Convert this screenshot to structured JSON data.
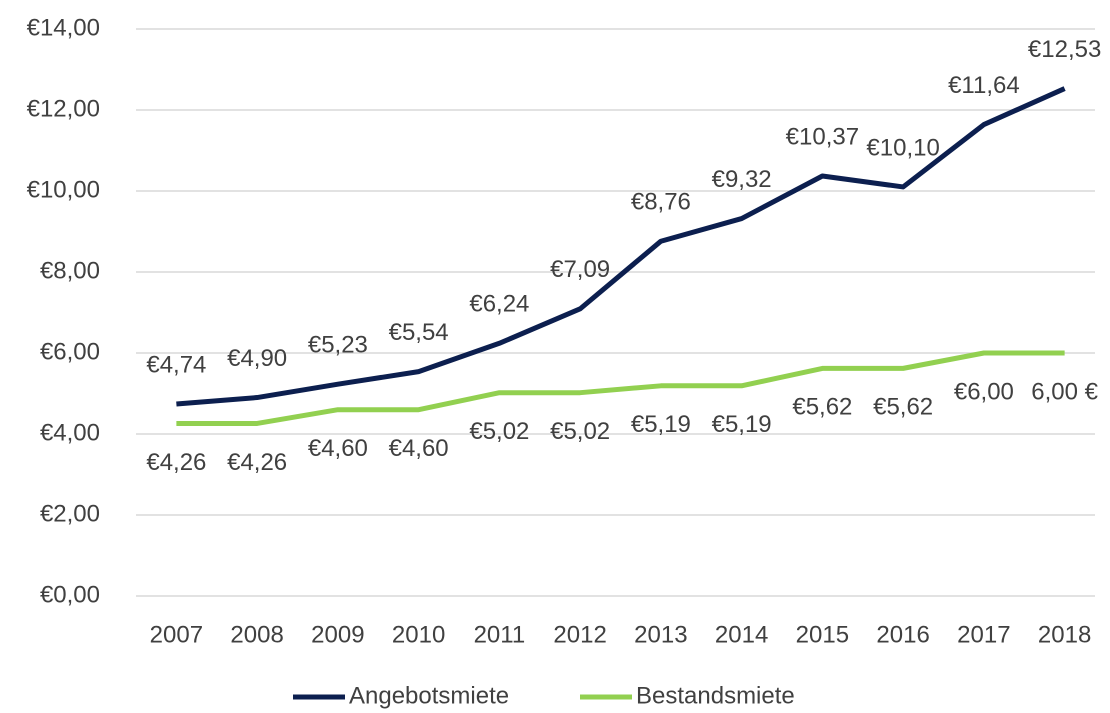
{
  "chart_data": {
    "type": "line",
    "categories": [
      "2007",
      "2008",
      "2009",
      "2010",
      "2011",
      "2012",
      "2013",
      "2014",
      "2015",
      "2016",
      "2017",
      "2018"
    ],
    "series": [
      {
        "name": "Angebotsmiete",
        "color": "#0c1f4f",
        "values": [
          4.74,
          4.9,
          5.23,
          5.54,
          6.24,
          7.09,
          8.76,
          9.32,
          10.37,
          10.1,
          11.64,
          12.53
        ],
        "value_labels": [
          "€4,74",
          "€4,90",
          "€5,23",
          "€5,54",
          "€6,24",
          "€7,09",
          "€8,76",
          "€9,32",
          "€10,37",
          "€10,10",
          "€11,64",
          "€12,53"
        ]
      },
      {
        "name": "Bestandsmiete",
        "color": "#92d050",
        "values": [
          4.26,
          4.26,
          4.6,
          4.6,
          5.02,
          5.02,
          5.19,
          5.19,
          5.62,
          5.62,
          6.0,
          6.0
        ],
        "value_labels": [
          "€4,26",
          "€4,26",
          "€4,60",
          "€4,60",
          "€5,02",
          "€5,02",
          "€5,19",
          "€5,19",
          "€5,62",
          "€5,62",
          "€6,00",
          "6,00 €"
        ]
      }
    ],
    "ylim": [
      0,
      14
    ],
    "yticks": [
      {
        "value": 0,
        "label": "€0,00"
      },
      {
        "value": 2,
        "label": "€2,00"
      },
      {
        "value": 4,
        "label": "€4,00"
      },
      {
        "value": 6,
        "label": "€6,00"
      },
      {
        "value": 8,
        "label": "€8,00"
      },
      {
        "value": 10,
        "label": "€10,00"
      },
      {
        "value": 12,
        "label": "€12,00"
      },
      {
        "value": 14,
        "label": "€14,00"
      }
    ],
    "grid": true,
    "legend": "bottom"
  }
}
